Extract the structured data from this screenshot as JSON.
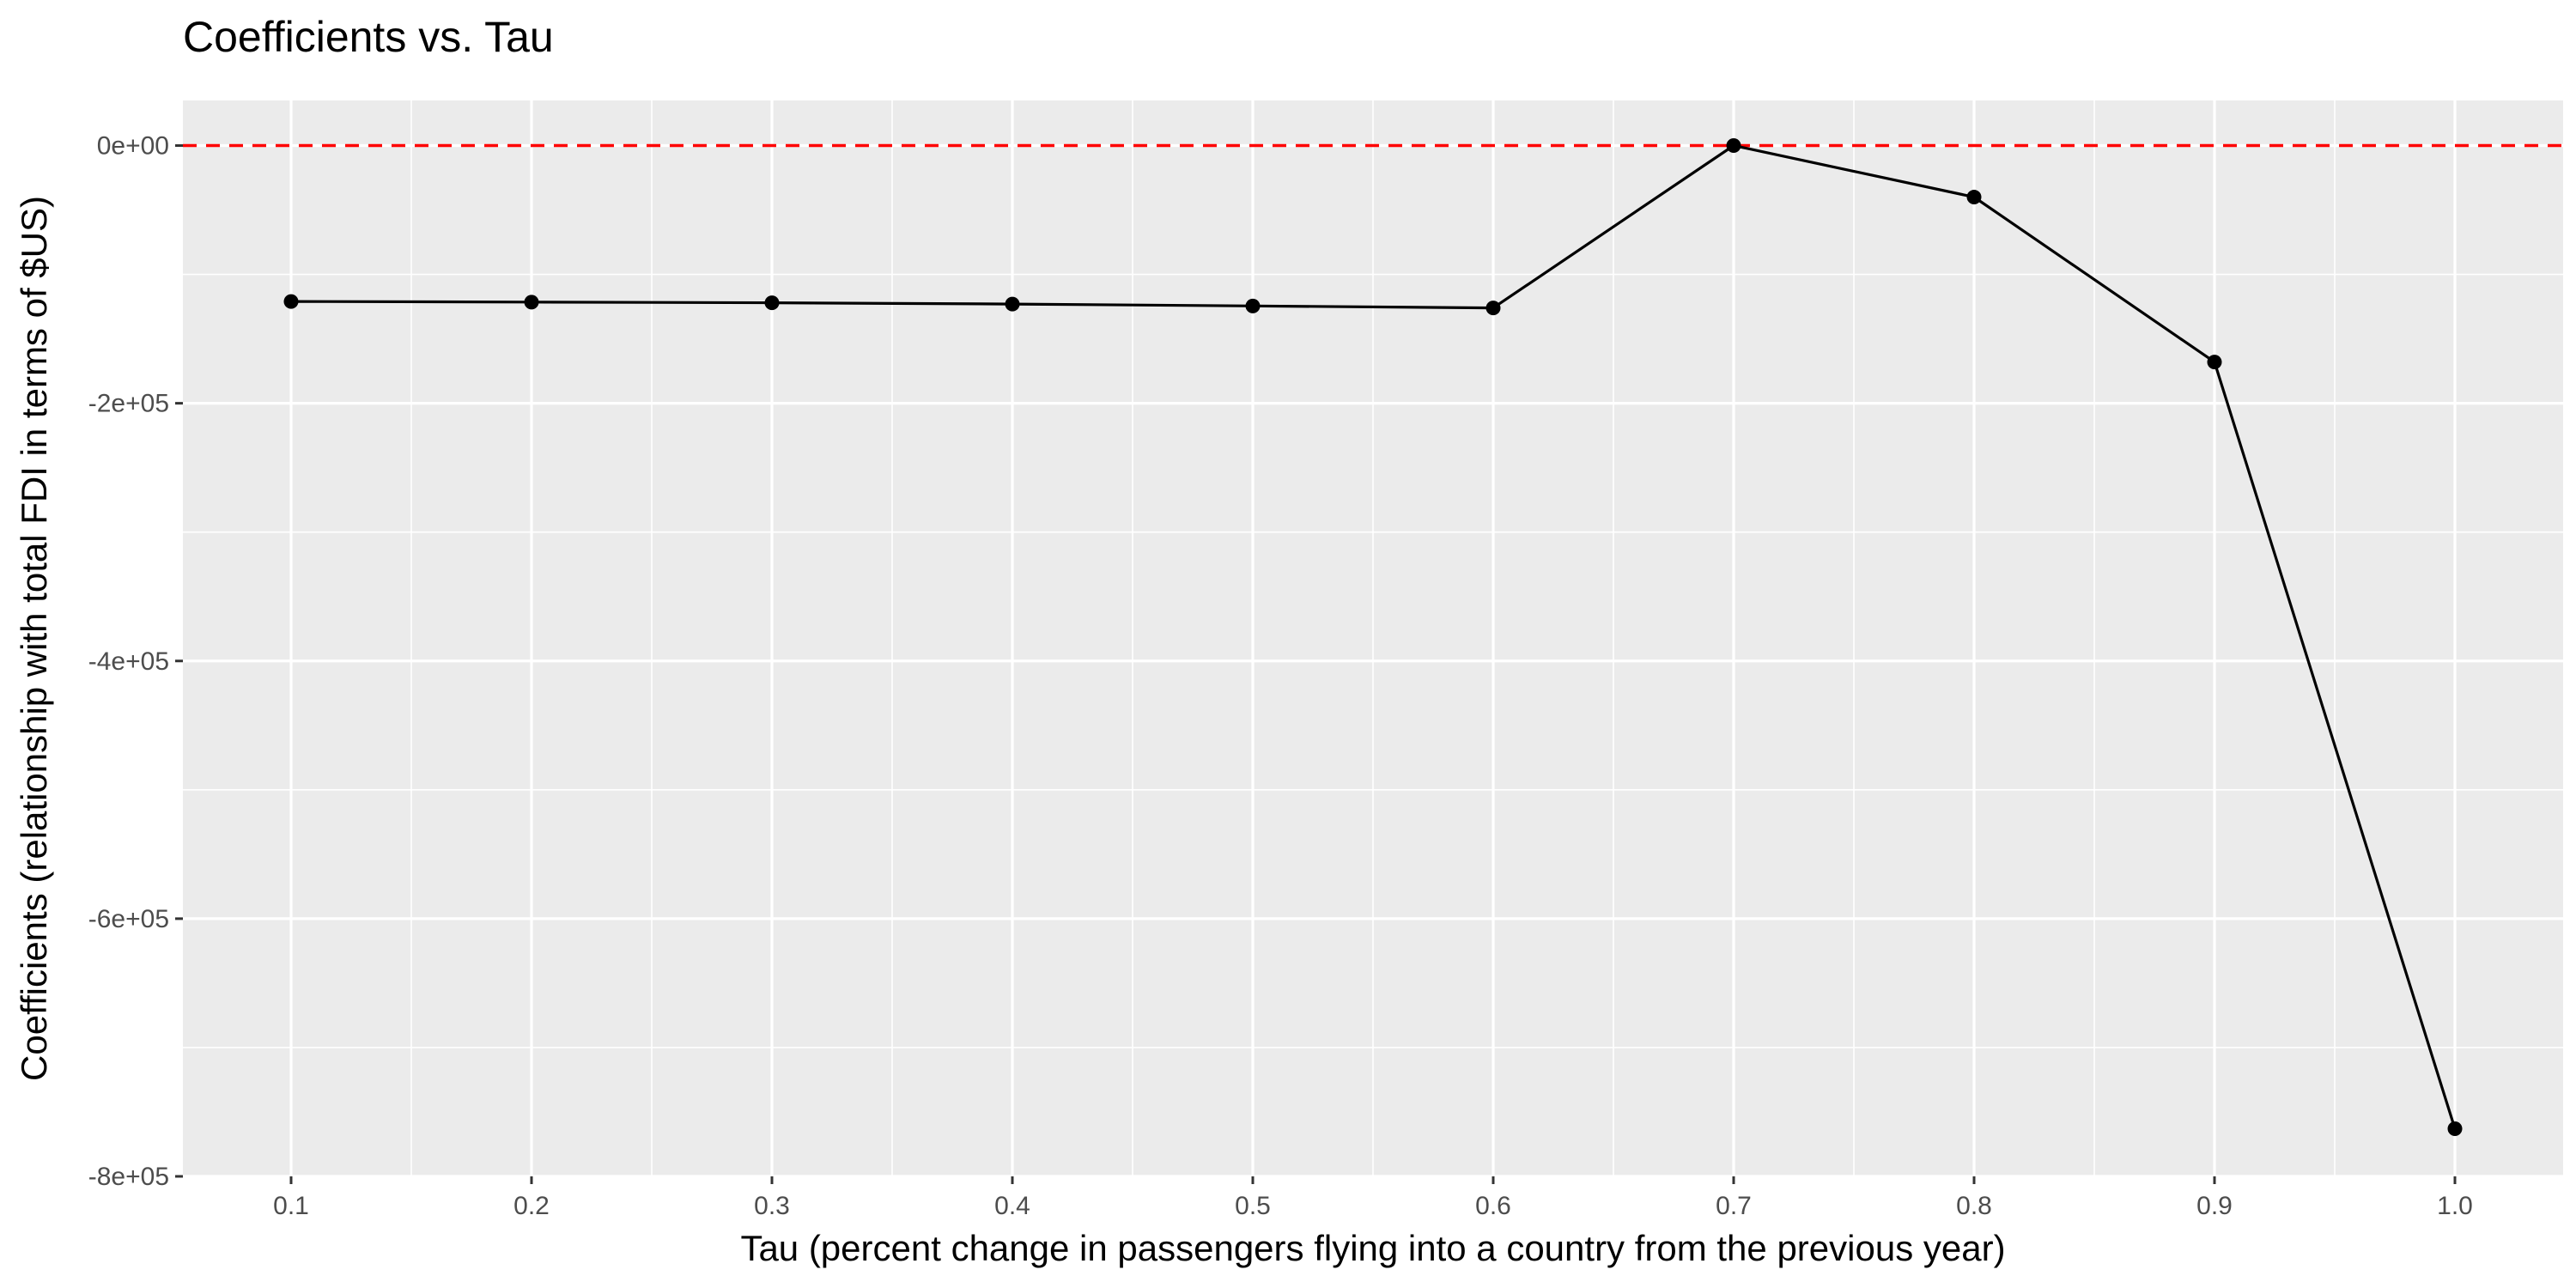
{
  "chart_data": {
    "type": "line",
    "title": "Coefficients vs. Tau",
    "xlabel": "Tau (percent change in passengers flying into a country from the previous year)",
    "ylabel": "Coefficients (relationship with total FDI in terms of $US)",
    "x": [
      0.1,
      0.2,
      0.3,
      0.4,
      0.5,
      0.6,
      0.7,
      0.8,
      0.9,
      1.0
    ],
    "series": [
      {
        "values": [
          -121000,
          -121500,
          -122000,
          -123000,
          -124500,
          -126000,
          0,
          -40000,
          -168000,
          -763000
        ]
      }
    ],
    "xlim": [
      0.055,
      1.045
    ],
    "ylim": [
      -800000,
      35000
    ],
    "x_ticks": [
      0.1,
      0.2,
      0.3,
      0.4,
      0.5,
      0.6,
      0.7,
      0.8,
      0.9,
      1.0
    ],
    "x_tick_labels": [
      "0.1",
      "0.2",
      "0.3",
      "0.4",
      "0.5",
      "0.6",
      "0.7",
      "0.8",
      "0.9",
      "1.0"
    ],
    "y_ticks": [
      0,
      -200000,
      -400000,
      -600000,
      -800000
    ],
    "y_tick_labels": [
      "0e+00",
      "-2e+05",
      "-4e+05",
      "-6e+05",
      "-8e+05"
    ],
    "reference_line": {
      "y": 0,
      "style": "dashed",
      "color": "#ff0000"
    },
    "grid": true,
    "colors": {
      "panel_background": "#ebebeb",
      "grid_major": "#ffffff",
      "line": "#000000",
      "point": "#000000",
      "reference_line": "#ff0000"
    }
  }
}
